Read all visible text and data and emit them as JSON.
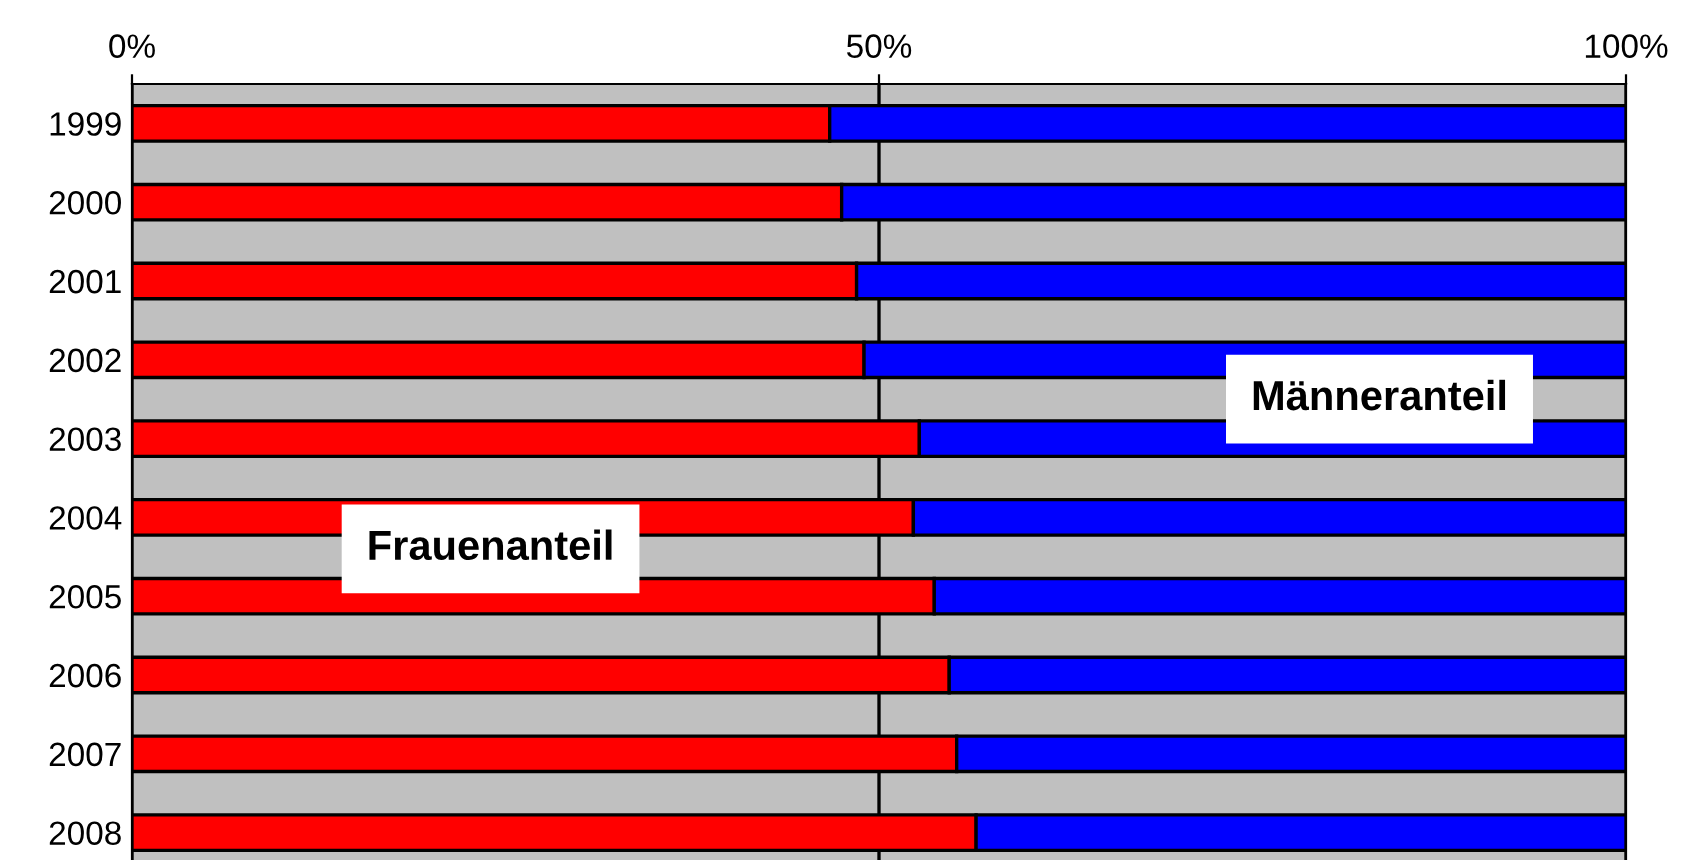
{
  "chart_data": {
    "type": "bar",
    "orientation": "horizontal",
    "stacked": true,
    "categories": [
      "1999",
      "2000",
      "2001",
      "2002",
      "2003",
      "2004",
      "2005",
      "2006",
      "2007",
      "2008"
    ],
    "series": [
      {
        "name": "Frauenanteil",
        "color": "#ff0000",
        "values": [
          46.7,
          47.5,
          48.5,
          49.0,
          52.7,
          52.3,
          53.7,
          54.7,
          55.2,
          56.5
        ]
      },
      {
        "name": "Männeranteil",
        "color": "#0000ff",
        "values": [
          53.3,
          52.5,
          51.5,
          51.0,
          47.3,
          47.7,
          46.3,
          45.3,
          44.8,
          43.5
        ]
      }
    ],
    "xlim": [
      0,
      100
    ],
    "xticks": [
      {
        "value": 0,
        "label": "0%"
      },
      {
        "value": 50,
        "label": "50%"
      },
      {
        "value": 100,
        "label": "100%"
      }
    ],
    "grid": "x",
    "legend": false
  }
}
